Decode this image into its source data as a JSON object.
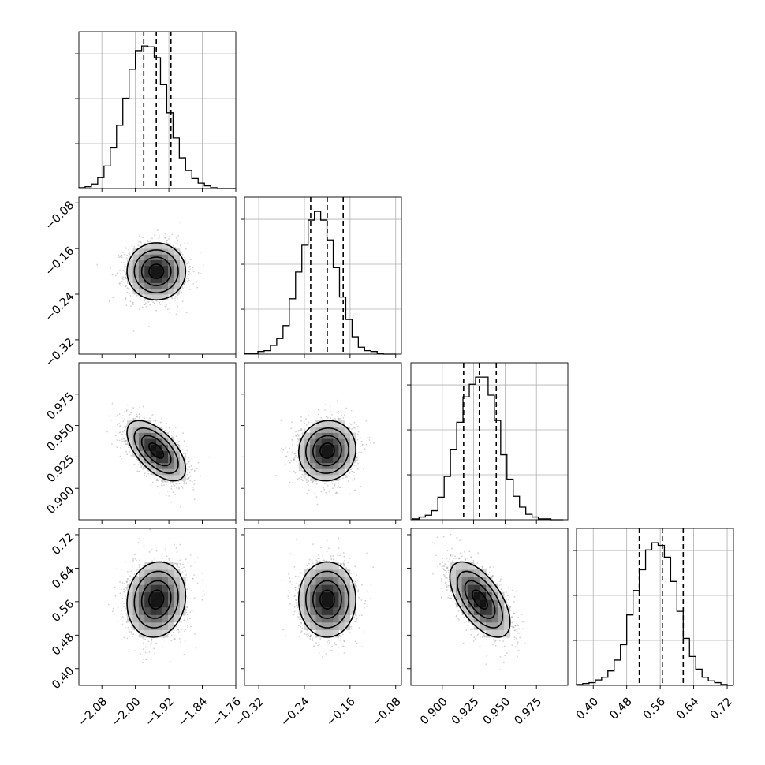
{
  "chart_data": {
    "type": "corner",
    "title": "",
    "grid": true,
    "parameters": [
      {
        "label": "",
        "mean": -1.95,
        "std": 0.035,
        "range": [
          -2.135,
          -1.76
        ],
        "ticks": [
          -2.08,
          -2.0,
          -1.92,
          -1.84,
          -1.76
        ],
        "quantiles": [
          -1.98,
          -1.95,
          -1.915
        ],
        "hist_edges": [
          -2.135,
          -2.12,
          -2.105,
          -2.09,
          -2.075,
          -2.06,
          -2.045,
          -2.03,
          -2.015,
          -2.0,
          -1.985,
          -1.97,
          -1.955,
          -1.94,
          -1.925,
          -1.91,
          -1.895,
          -1.88,
          -1.865,
          -1.85,
          -1.835,
          -1.82,
          -1.805,
          -1.79,
          -1.775,
          -1.76
        ],
        "hist_counts": [
          1,
          2,
          5,
          12,
          25,
          45,
          70,
          100,
          132,
          152,
          158,
          157,
          145,
          115,
          84,
          56,
          34,
          20,
          11,
          6,
          3,
          1,
          0,
          0,
          0
        ]
      },
      {
        "label": "",
        "mean": -0.2,
        "std": 0.025,
        "range": [
          -0.345,
          -0.07
        ],
        "ticks": [
          -0.32,
          -0.24,
          -0.16,
          -0.08
        ],
        "quantiles": [
          -0.229,
          -0.2,
          -0.172
        ],
        "hist_edges": [
          -0.3435,
          -0.3325,
          -0.3215,
          -0.3105,
          -0.2995,
          -0.2885,
          -0.2775,
          -0.2665,
          -0.2555,
          -0.2445,
          -0.2335,
          -0.2225,
          -0.2115,
          -0.2005,
          -0.1895,
          -0.1785,
          -0.1675,
          -0.1565,
          -0.1455,
          -0.1345,
          -0.1235,
          -0.1125,
          -0.1015,
          -0.0905,
          -0.0795
        ],
        "hist_counts": [
          1,
          1,
          3,
          4,
          10,
          18,
          33,
          64,
          95,
          126,
          155,
          165,
          155,
          132,
          100,
          66,
          40,
          20,
          8,
          4,
          3,
          1,
          0,
          0
        ]
      },
      {
        "label": "",
        "mean": 0.93,
        "std": 0.012,
        "range": [
          0.875,
          1.0
        ],
        "ticks": [
          0.9,
          0.925,
          0.95,
          0.975
        ],
        "quantiles": [
          0.917,
          0.9295,
          0.943
        ],
        "hist_edges": [
          0.8765,
          0.8815,
          0.8865,
          0.8915,
          0.8965,
          0.9015,
          0.9065,
          0.9115,
          0.9165,
          0.9215,
          0.9265,
          0.9315,
          0.9365,
          0.9415,
          0.9465,
          0.9515,
          0.9565,
          0.9615,
          0.9665,
          0.9715,
          0.9765,
          0.9815,
          0.9865,
          0.9915,
          0.9965
        ],
        "hist_counts": [
          1,
          3,
          5,
          10,
          25,
          48,
          78,
          108,
          136,
          150,
          158,
          158,
          138,
          110,
          72,
          45,
          26,
          14,
          6,
          3,
          1,
          1,
          0,
          0
        ]
      },
      {
        "label": "",
        "mean": 0.565,
        "std": 0.045,
        "range": [
          0.36,
          0.735
        ],
        "ticks": [
          0.4,
          0.48,
          0.56,
          0.64,
          0.72
        ],
        "quantiles": [
          0.51,
          0.565,
          0.615
        ],
        "hist_edges": [
          0.36,
          0.375,
          0.39,
          0.405,
          0.42,
          0.435,
          0.45,
          0.465,
          0.48,
          0.495,
          0.51,
          0.525,
          0.54,
          0.555,
          0.57,
          0.585,
          0.6,
          0.615,
          0.63,
          0.645,
          0.66,
          0.675,
          0.69,
          0.705,
          0.72,
          0.735
        ],
        "hist_counts": [
          1,
          2,
          3,
          6,
          9,
          16,
          28,
          45,
          78,
          105,
          128,
          150,
          158,
          155,
          142,
          115,
          82,
          52,
          32,
          18,
          9,
          5,
          3,
          1,
          0
        ]
      }
    ],
    "correlations": [
      {
        "pair": [
          1,
          0
        ],
        "rho": 0.0
      },
      {
        "pair": [
          2,
          0
        ],
        "rho": -0.6
      },
      {
        "pair": [
          2,
          1
        ],
        "rho": 0.05
      },
      {
        "pair": [
          3,
          0
        ],
        "rho": 0.1
      },
      {
        "pair": [
          3,
          1
        ],
        "rho": 0.0
      },
      {
        "pair": [
          3,
          2
        ],
        "rho": -0.6
      }
    ],
    "tick_labels": {
      "x": [
        [
          "−2.08",
          "−2.00",
          "−1.92",
          "−1.84",
          "−1.76"
        ],
        [
          "−0.32",
          "−0.24",
          "−0.16",
          "−0.08"
        ],
        [
          "0.900",
          "0.925",
          "0.950",
          "0.975"
        ],
        [
          "0.40",
          "0.48",
          "0.56",
          "0.64",
          "0.72"
        ]
      ],
      "y": {
        "1": [
          "−0.08",
          "−0.16",
          "−0.24",
          "−0.32"
        ],
        "2": [
          "0.975",
          "0.950",
          "0.925",
          "0.900"
        ],
        "3": [
          "0.72",
          "0.64",
          "0.56",
          "0.48",
          "0.40"
        ]
      }
    },
    "contour_levels_sigma": [
      0.5,
      1.0,
      1.5,
      2.0
    ],
    "colors": {
      "line": "#000000",
      "grid": "#b0b0b0",
      "density_dark": "#0d0d0d",
      "scatter": "#9a9a9a"
    }
  }
}
